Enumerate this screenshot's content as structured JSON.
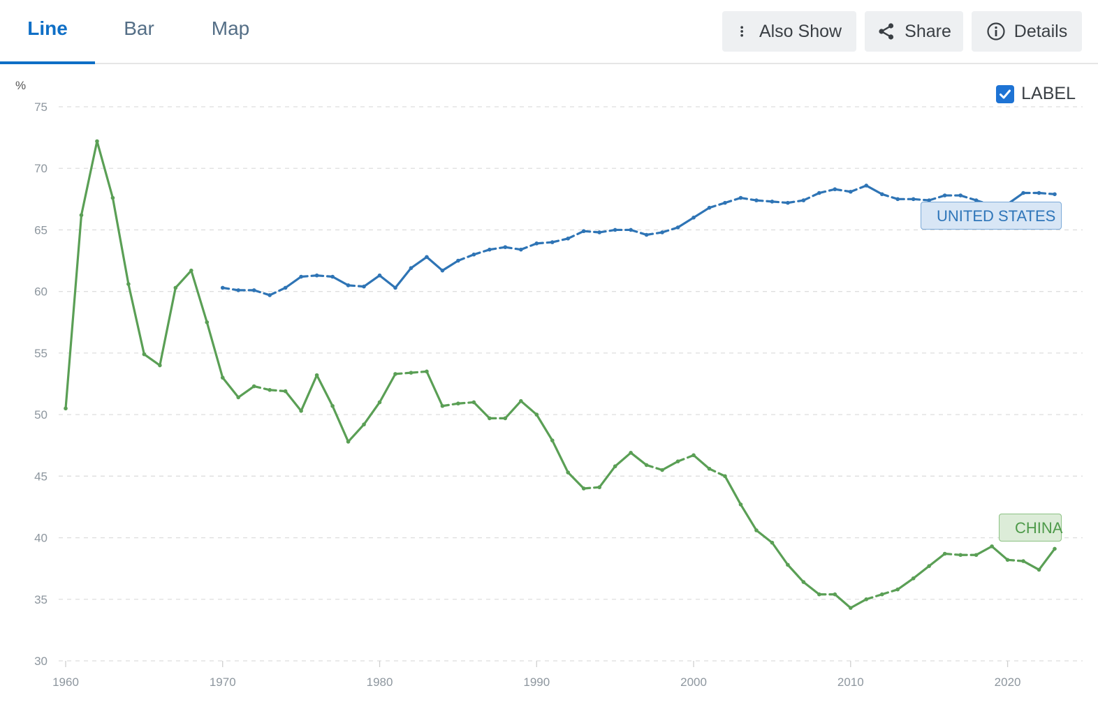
{
  "tabs": [
    {
      "label": "Line",
      "active": true
    },
    {
      "label": "Bar",
      "active": false
    },
    {
      "label": "Map",
      "active": false
    }
  ],
  "toolbar": {
    "also_show_label": "Also Show",
    "share_label": "Share",
    "details_label": "Details"
  },
  "label_toggle": {
    "label": "LABEL",
    "checked": true
  },
  "chart_data": {
    "type": "line",
    "ylabel": "%",
    "ylim": [
      30,
      75
    ],
    "y_ticks": [
      "75",
      "70",
      "65",
      "60",
      "55",
      "50",
      "45",
      "40",
      "35",
      "30"
    ],
    "xlim": [
      1960,
      2023
    ],
    "x_ticks": [
      "1960",
      "1970",
      "1980",
      "1990",
      "2000",
      "2010",
      "2020"
    ],
    "grid": true,
    "series": [
      {
        "name": "CHINA",
        "color": "#5a9f55",
        "x": [
          1960,
          1961,
          1962,
          1963,
          1964,
          1965,
          1966,
          1967,
          1968,
          1969,
          1970,
          1971,
          1972,
          1973,
          1974,
          1975,
          1976,
          1977,
          1978,
          1979,
          1980,
          1981,
          1982,
          1983,
          1984,
          1985,
          1986,
          1987,
          1988,
          1989,
          1990,
          1991,
          1992,
          1993,
          1994,
          1995,
          1996,
          1997,
          1998,
          1999,
          2000,
          2001,
          2002,
          2003,
          2004,
          2005,
          2006,
          2007,
          2008,
          2009,
          2010,
          2011,
          2012,
          2013,
          2014,
          2015,
          2016,
          2017,
          2018,
          2019,
          2020,
          2021,
          2022,
          2023
        ],
        "values": [
          50.5,
          66.2,
          72.2,
          67.6,
          60.6,
          54.9,
          54.0,
          60.3,
          61.7,
          57.5,
          53.0,
          51.4,
          52.3,
          52.0,
          51.9,
          50.3,
          53.2,
          50.7,
          47.8,
          49.2,
          51.0,
          53.3,
          53.4,
          53.5,
          50.7,
          50.9,
          51.0,
          49.7,
          49.7,
          51.1,
          50.0,
          47.9,
          45.3,
          44.0,
          44.1,
          45.8,
          46.9,
          45.9,
          45.5,
          46.2,
          46.7,
          45.6,
          45.0,
          42.7,
          40.6,
          39.6,
          37.8,
          36.4,
          35.4,
          35.4,
          34.3,
          35.0,
          35.4,
          35.8,
          36.7,
          37.7,
          38.7,
          38.6,
          38.6,
          39.3,
          38.2,
          38.1,
          37.4,
          39.1
        ]
      },
      {
        "name": "UNITED STATES",
        "color": "#2e74b5",
        "x": [
          1970,
          1971,
          1972,
          1973,
          1974,
          1975,
          1976,
          1977,
          1978,
          1979,
          1980,
          1981,
          1982,
          1983,
          1984,
          1985,
          1986,
          1987,
          1988,
          1989,
          1990,
          1991,
          1992,
          1993,
          1994,
          1995,
          1996,
          1997,
          1998,
          1999,
          2000,
          2001,
          2002,
          2003,
          2004,
          2005,
          2006,
          2007,
          2008,
          2009,
          2010,
          2011,
          2012,
          2013,
          2014,
          2015,
          2016,
          2017,
          2018,
          2019,
          2020,
          2021,
          2022,
          2023
        ],
        "values": [
          60.3,
          60.1,
          60.1,
          59.7,
          60.3,
          61.2,
          61.3,
          61.2,
          60.5,
          60.4,
          61.3,
          60.3,
          61.9,
          62.8,
          61.7,
          62.5,
          63.0,
          63.4,
          63.6,
          63.4,
          63.9,
          64.0,
          64.3,
          64.9,
          64.8,
          65.0,
          65.0,
          64.6,
          64.8,
          65.2,
          66.0,
          66.8,
          67.2,
          67.6,
          67.4,
          67.3,
          67.2,
          67.4,
          68.0,
          68.3,
          68.1,
          68.6,
          67.9,
          67.5,
          67.5,
          67.4,
          67.8,
          67.8,
          67.4,
          67.0,
          67.1,
          68.0,
          68.0,
          67.9
        ]
      }
    ]
  }
}
